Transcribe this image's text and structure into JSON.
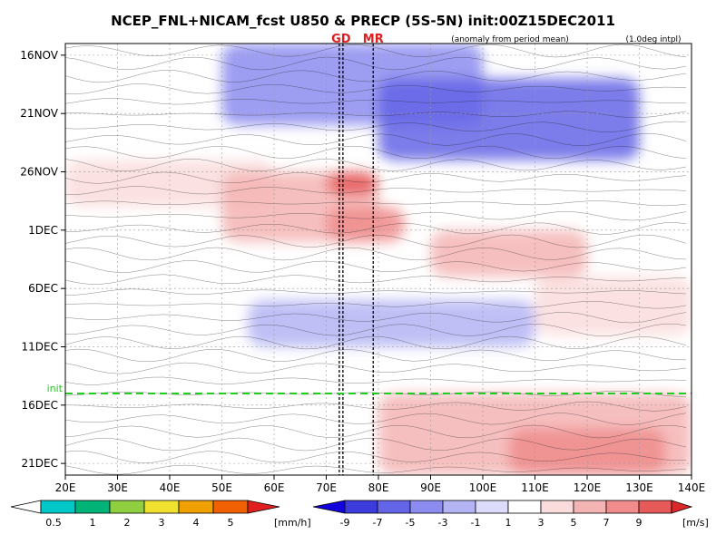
{
  "chart_data": {
    "type": "heatmap",
    "title": "NCEP_FNL+NICAM_fcst U850 & PRECP (5S-5N) init:00Z15DEC2011",
    "subtitle_left": "(anomaly from period mean)",
    "subtitle_right": "(1.0deg intpl)",
    "x_ticks": [
      "20E",
      "30E",
      "40E",
      "50E",
      "60E",
      "70E",
      "80E",
      "90E",
      "100E",
      "110E",
      "120E",
      "130E",
      "140E"
    ],
    "xlim": [
      20,
      140
    ],
    "y_ticks": [
      "16NOV",
      "21NOV",
      "26NOV",
      "1DEC",
      "6DEC",
      "11DEC",
      "16DEC",
      "21DEC"
    ],
    "y_tick_days": [
      0,
      5,
      10,
      15,
      20,
      25,
      30,
      35
    ],
    "ylim_days": [
      -1,
      36
    ],
    "init_label": "init",
    "init_day": 29,
    "markers": [
      {
        "label": "GD",
        "lon": 72.5,
        "double": true
      },
      {
        "label": "MR",
        "lon": 79,
        "double": false
      }
    ],
    "wind_field": {
      "note": "U850 anomaly (m/s) shading, time-longitude; eastward propagating westerly anomaly",
      "bands": [
        {
          "t0": -1,
          "t1": 6,
          "lon0": 50,
          "lon1": 100,
          "value": -5
        },
        {
          "t0": 2,
          "t1": 9,
          "lon0": 80,
          "lon1": 130,
          "value": -7
        },
        {
          "t0": 9,
          "t1": 13,
          "lon0": 20,
          "lon1": 60,
          "value": 3
        },
        {
          "t0": 10,
          "t1": 16,
          "lon0": 50,
          "lon1": 80,
          "value": 5
        },
        {
          "t0": 10,
          "t1": 12,
          "lon0": 70,
          "lon1": 80,
          "value": 9
        },
        {
          "t0": 13,
          "t1": 16,
          "lon0": 70,
          "lon1": 85,
          "value": 7
        },
        {
          "t0": 15,
          "t1": 19,
          "lon0": 90,
          "lon1": 120,
          "value": 5
        },
        {
          "t0": 19,
          "t1": 24,
          "lon0": 110,
          "lon1": 140,
          "value": 3
        },
        {
          "t0": 21,
          "t1": 25,
          "lon0": 55,
          "lon1": 110,
          "value": -3
        },
        {
          "t0": 29,
          "t1": 36,
          "lon0": 80,
          "lon1": 140,
          "value": 5
        },
        {
          "t0": 32,
          "t1": 36,
          "lon0": 105,
          "lon1": 135,
          "value": 7
        }
      ]
    },
    "colorbar_precip": {
      "unit": "[mm/h]",
      "tick_labels": [
        "0.5",
        "1",
        "2",
        "3",
        "4",
        "5"
      ],
      "colors": [
        "#ffffff",
        "#00c8c8",
        "#00b478",
        "#90d040",
        "#f0e030",
        "#f0a000",
        "#f06000",
        "#e02020"
      ]
    },
    "colorbar_wind": {
      "unit": "[m/s]",
      "tick_labels": [
        "-9",
        "-7",
        "-5",
        "-3",
        "-1",
        "1",
        "3",
        "5",
        "7",
        "9"
      ],
      "colors": [
        "#1400dc",
        "#3c3cdc",
        "#6464e6",
        "#8c8cf0",
        "#b4b4f5",
        "#dcdcfa",
        "#ffffff",
        "#fadcdc",
        "#f5b4b4",
        "#f08c8c",
        "#e65a5a",
        "#dc2828"
      ]
    }
  }
}
